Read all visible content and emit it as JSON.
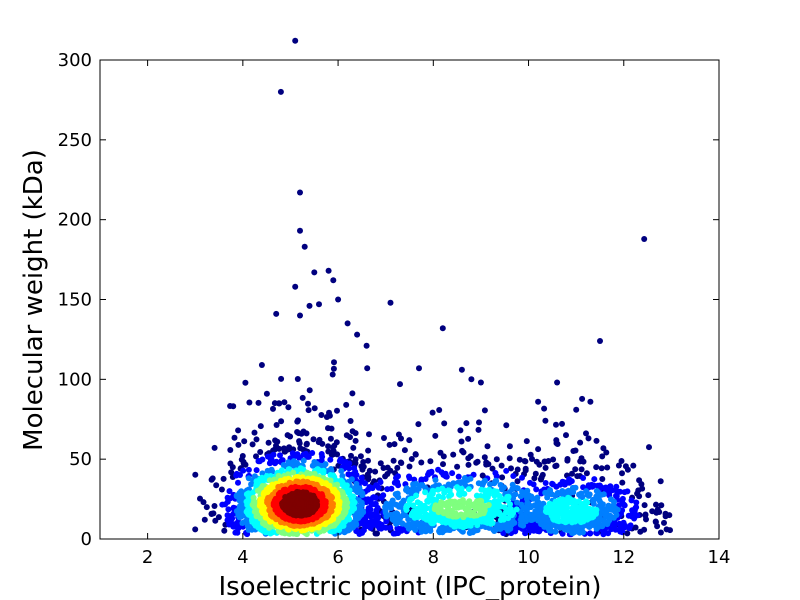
{
  "chart_data": {
    "type": "scatter",
    "xlabel": "Isoelectric point (IPC_protein)",
    "ylabel": "Molecular weight (kDa)",
    "xlim": [
      1,
      14
    ],
    "ylim": [
      0,
      300
    ],
    "xticks": [
      2,
      4,
      6,
      8,
      10,
      12,
      14
    ],
    "yticks": [
      0,
      50,
      100,
      150,
      200,
      250,
      300
    ],
    "grid": false,
    "legend": "none",
    "color_scale": "density (jet: blue low → red high)",
    "density_colors": [
      "#00007f",
      "#0000ff",
      "#007fff",
      "#00ffff",
      "#7fff7f",
      "#ffff00",
      "#ff7f00",
      "#ff0000",
      "#7f0000"
    ],
    "clusters": [
      {
        "center_x": 5.2,
        "center_y": 22,
        "spread_x": 0.7,
        "spread_y": 14,
        "count": 2200
      },
      {
        "center_x": 8.6,
        "center_y": 20,
        "spread_x": 1.2,
        "spread_y": 13,
        "count": 900
      },
      {
        "center_x": 10.9,
        "center_y": 18,
        "spread_x": 0.8,
        "spread_y": 12,
        "count": 700
      }
    ],
    "outliers": [
      [
        5.1,
        312
      ],
      [
        4.8,
        280
      ],
      [
        5.2,
        217
      ],
      [
        5.2,
        193
      ],
      [
        5.3,
        183
      ],
      [
        5.8,
        168
      ],
      [
        5.5,
        167
      ],
      [
        5.9,
        162
      ],
      [
        5.1,
        158
      ],
      [
        5.4,
        146
      ],
      [
        5.6,
        147
      ],
      [
        7.1,
        148
      ],
      [
        6.0,
        150
      ],
      [
        4.7,
        141
      ],
      [
        5.2,
        140
      ],
      [
        6.2,
        135
      ],
      [
        8.2,
        132
      ],
      [
        11.5,
        124
      ],
      [
        6.6,
        121
      ],
      [
        6.4,
        128
      ],
      [
        10.6,
        98
      ],
      [
        10.2,
        86
      ],
      [
        11.0,
        81
      ],
      [
        11.3,
        86
      ],
      [
        8.6,
        106
      ],
      [
        7.7,
        107
      ],
      [
        7.3,
        97
      ],
      [
        12.2,
        46
      ],
      [
        12.9,
        6
      ],
      [
        12.7,
        8
      ],
      [
        3.0,
        6
      ],
      [
        3.2,
        12
      ],
      [
        3.9,
        68
      ],
      [
        4.0,
        52
      ],
      [
        4.4,
        109
      ],
      [
        6.5,
        85
      ],
      [
        9.0,
        98
      ],
      [
        8.8,
        100
      ]
    ]
  }
}
